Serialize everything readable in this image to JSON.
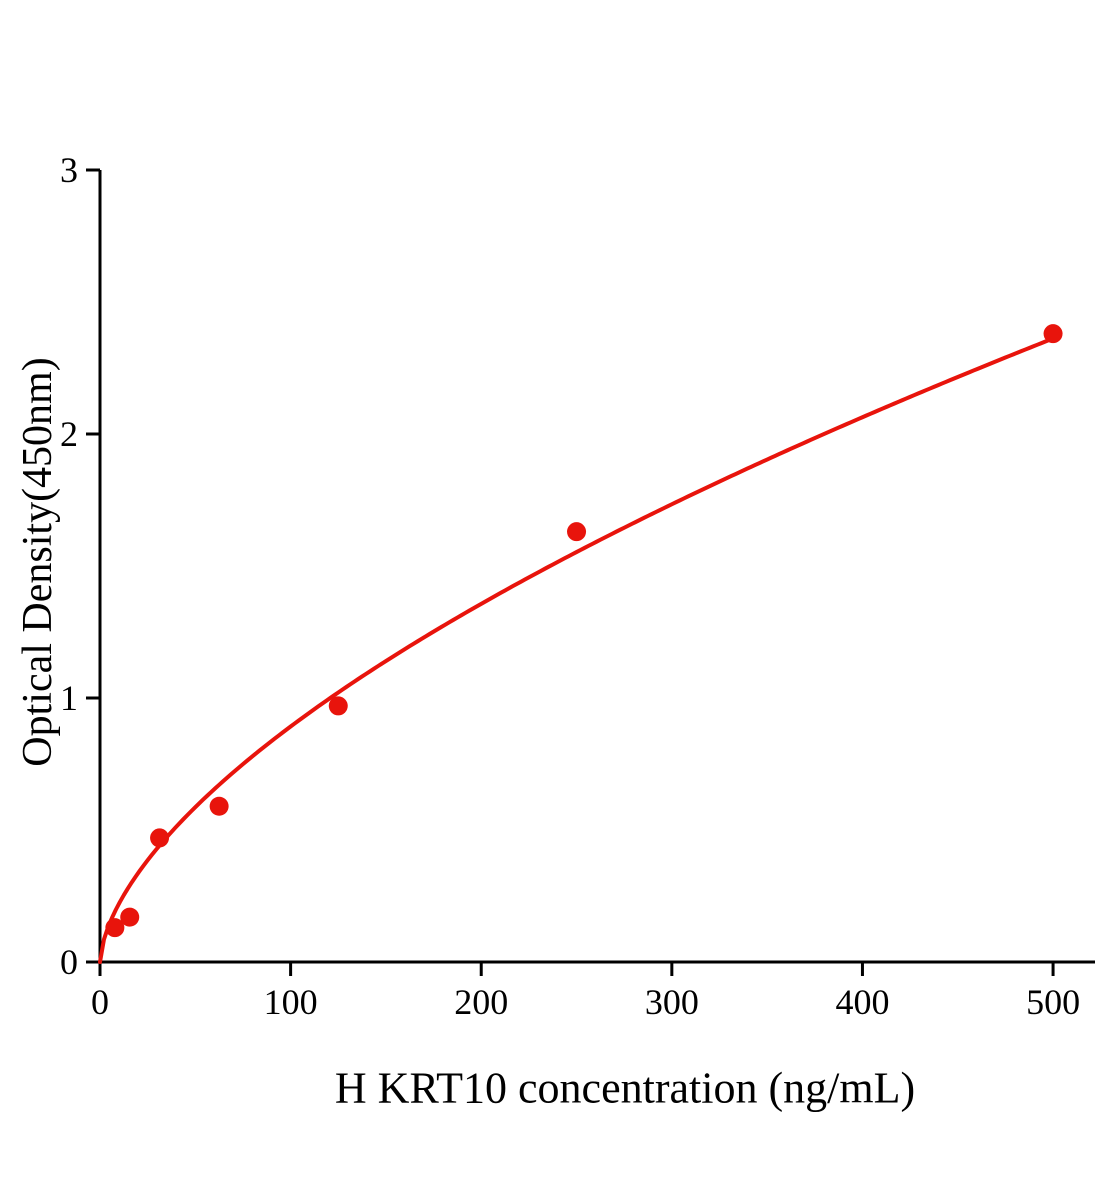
{
  "figure": {
    "background": "#ffffff"
  },
  "chart_data": {
    "type": "scatter",
    "title": "",
    "xlabel": "H KRT10 concentration (ng/mL)",
    "ylabel": "Optical Density(450nm)",
    "x": [
      7.8,
      15.6,
      31.25,
      62.5,
      125,
      250,
      500
    ],
    "y": [
      0.13,
      0.17,
      0.47,
      0.59,
      0.97,
      1.63,
      2.38
    ],
    "xlim": [
      0,
      522
    ],
    "ylim": [
      0,
      3
    ],
    "x_ticks": [
      0,
      100,
      200,
      300,
      400,
      500
    ],
    "y_ticks": [
      0,
      1,
      2,
      3
    ],
    "grid": false,
    "legend": "none",
    "point_color": "#e8140c",
    "curve_color": "#e8140c",
    "axis_color": "#000000",
    "fit": {
      "type": "power",
      "a": 0.055,
      "b": 0.605,
      "x_start": 0,
      "x_end": 500
    }
  }
}
